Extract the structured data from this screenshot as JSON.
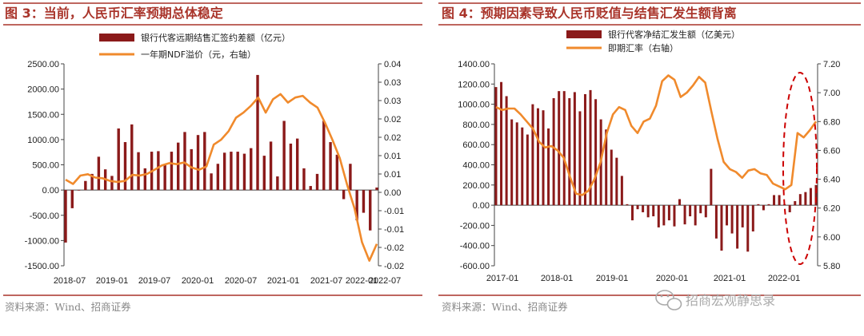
{
  "colors": {
    "accent": "#a9342a",
    "bar": "#8b1a1a",
    "line": "#f08a2c",
    "highlight": "#cc0000"
  },
  "chart_data": [
    {
      "type": "bar",
      "title": "图 3：当前，人民币汇率预期总体稳定",
      "source": "资料来源：Wind、招商证券",
      "legend_position": "top",
      "grid": false,
      "x_tick_labels": [
        "2018-07",
        "2019-01",
        "2019-07",
        "2020-01",
        "2020-07",
        "2021-01",
        "2021-07",
        "2022-01",
        "2022-07"
      ],
      "y_left": {
        "min": -1500,
        "max": 2500,
        "ticks": [
          "-1500.00",
          "-1000.00",
          "-500.00",
          "0.00",
          "500.00",
          "1000.00",
          "1500.00",
          "2000.00",
          "2500.00"
        ]
      },
      "y_right": {
        "min": -0.02,
        "max": 0.04,
        "ticks": [
          "-0.02",
          "-0.02",
          "-0.01",
          "-0.01",
          "0.00",
          "0.01",
          "0.01",
          "0.02",
          "0.02",
          "0.03",
          "0.03",
          "0.04"
        ]
      },
      "series": [
        {
          "name": "银行代客远期结售汇签约差额（亿元）",
          "type": "bar",
          "axis": "left",
          "values": [
            -1040,
            -360,
            0,
            180,
            320,
            660,
            410,
            280,
            1220,
            950,
            1300,
            750,
            430,
            760,
            770,
            510,
            760,
            940,
            1150,
            810,
            1090,
            1150,
            330,
            520,
            740,
            760,
            760,
            720,
            830,
            2280,
            680,
            960,
            270,
            1370,
            920,
            1020,
            430,
            80,
            320,
            1370,
            950,
            700,
            -180,
            520,
            -600,
            -450,
            -800,
            50
          ]
        },
        {
          "name": "一年期NDF溢价（元，右轴）",
          "type": "line",
          "axis": "right",
          "values": [
            0.0056,
            0.0043,
            0.0068,
            0.0072,
            0.0062,
            0.006,
            0.0052,
            0.0049,
            0.0052,
            0.007,
            0.0068,
            0.0073,
            0.0085,
            0.0098,
            0.0105,
            0.0102,
            0.0107,
            0.0092,
            0.0085,
            0.0095,
            0.016,
            0.0175,
            0.02,
            0.024,
            0.0255,
            0.0275,
            0.03,
            0.0255,
            0.0295,
            0.031,
            0.0285,
            0.03,
            0.0305,
            0.0285,
            0.027,
            0.0225,
            0.0175,
            0.012,
            0.004,
            -0.003,
            -0.013,
            -0.0185,
            -0.0135
          ]
        }
      ]
    },
    {
      "type": "bar",
      "title": "图 4：预期因素导致人民币贬值与结售汇发生额背离",
      "source": "资料来源：Wind、招商证券",
      "legend_position": "top",
      "grid": false,
      "x_tick_labels": [
        "2017-01",
        "2018-01",
        "2019-01",
        "2020-01",
        "2021-01",
        "2022-01"
      ],
      "y_left": {
        "min": -600,
        "max": 1400,
        "ticks": [
          "-600.00",
          "-400.00",
          "-200.00",
          "0.00",
          "200.00",
          "400.00",
          "600.00",
          "800.00",
          "1000.00",
          "1200.00",
          "1400.00"
        ]
      },
      "y_right": {
        "min": 5.8,
        "max": 7.2,
        "ticks": [
          "5.80",
          "6.00",
          "6.20",
          "6.40",
          "6.60",
          "6.80",
          "7.00",
          "7.20"
        ]
      },
      "series": [
        {
          "name": "银行代客净结汇发生额（亿美元）",
          "type": "bar",
          "axis": "left",
          "values": [
            1170,
            1220,
            1080,
            850,
            820,
            770,
            700,
            1000,
            960,
            940,
            760,
            1060,
            1130,
            1130,
            1060,
            1120,
            930,
            1100,
            1140,
            1050,
            850,
            750,
            550,
            470,
            290,
            10,
            -150,
            -40,
            -70,
            -120,
            -110,
            -220,
            -200,
            -150,
            -210,
            60,
            -190,
            -110,
            -200,
            -80,
            -120,
            360,
            -330,
            -450,
            -200,
            -280,
            -430,
            -220,
            -460,
            -260,
            10,
            -50,
            10,
            100,
            100,
            10,
            -70,
            40,
            110,
            130,
            170,
            200
          ]
        },
        {
          "name": "即期汇率（右轴）",
          "type": "line",
          "axis": "right",
          "values": [
            6.9,
            6.88,
            6.89,
            6.89,
            6.85,
            6.8,
            6.75,
            6.66,
            6.62,
            6.63,
            6.6,
            6.55,
            6.42,
            6.3,
            6.29,
            6.32,
            6.4,
            6.52,
            6.72,
            6.85,
            6.9,
            6.88,
            6.77,
            6.72,
            6.8,
            6.82,
            6.91,
            7.08,
            7.12,
            7.09,
            6.97,
            7.0,
            7.05,
            7.11,
            7.07,
            6.87,
            6.68,
            6.52,
            6.47,
            6.45,
            6.41,
            6.46,
            6.47,
            6.44,
            6.43,
            6.37,
            6.35,
            6.33,
            6.36,
            6.72,
            6.69,
            6.74,
            6.8
          ]
        }
      ]
    }
  ],
  "watermark": "招商宏观静思录"
}
